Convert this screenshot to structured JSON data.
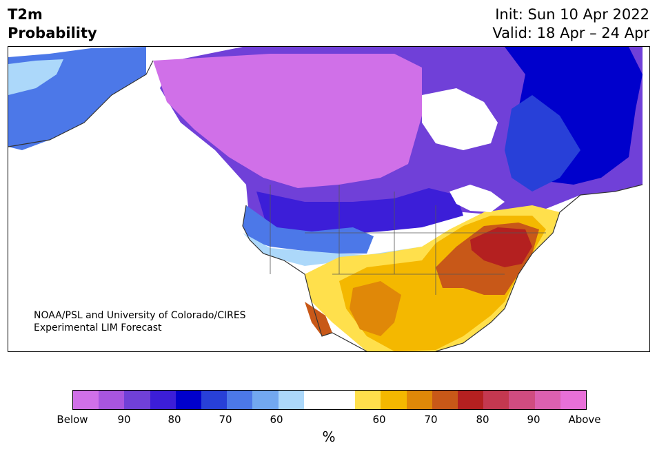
{
  "header": {
    "title_line1": "T2m",
    "title_line2": "Probability",
    "init_text": "Init: Sun 10 Apr 2022",
    "valid_text": "Valid: 18 Apr – 24 Apr"
  },
  "credit": {
    "line1": "NOAA/PSL and University of Colorado/CIRES",
    "line2": "Experimental LIM Forecast"
  },
  "colorbar": {
    "colors": [
      "#d070e8",
      "#a855e0",
      "#7040d8",
      "#3c1ed8",
      "#0000cc",
      "#2840d8",
      "#4c78e8",
      "#72a8f0",
      "#acd8fa",
      "#ffffff",
      "#ffffff",
      "#ffe04c",
      "#f4b800",
      "#e08808",
      "#c85818",
      "#b42020",
      "#c43850",
      "#d04c80",
      "#dc60b0",
      "#e870d8"
    ],
    "tick_labels": [
      "Below",
      "90",
      "80",
      "70",
      "60",
      "60",
      "70",
      "80",
      "90",
      "Above"
    ],
    "unit": "%"
  },
  "map": {
    "ocean_color": "#ffffff",
    "coast_color": "#333333"
  }
}
